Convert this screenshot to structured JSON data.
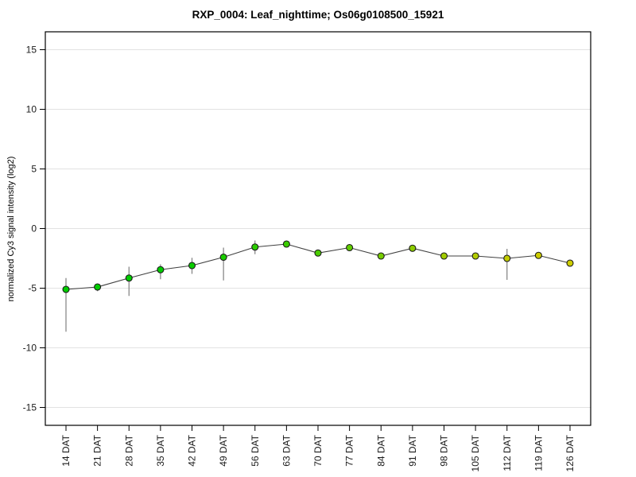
{
  "chart_data": {
    "type": "line",
    "title": "RXP_0004: Leaf_nighttime; Os06g0108500_15921",
    "ylabel": "normalized Cy3 signal intensity (log2)",
    "xlabel": "",
    "categories": [
      "14 DAT",
      "21 DAT",
      "28 DAT",
      "35 DAT",
      "42 DAT",
      "49 DAT",
      "56 DAT",
      "63 DAT",
      "70 DAT",
      "77 DAT",
      "84 DAT",
      "91 DAT",
      "98 DAT",
      "105 DAT",
      "112 DAT",
      "119 DAT",
      "126 DAT"
    ],
    "values": [
      -5.1,
      -4.9,
      -4.15,
      -3.45,
      -3.1,
      -2.4,
      -1.55,
      -1.3,
      -2.05,
      -1.6,
      -2.3,
      -1.65,
      -2.3,
      -2.3,
      -2.5,
      -2.25,
      -2.9
    ],
    "error_low": [
      -8.65,
      -5.25,
      -5.65,
      -4.25,
      -3.8,
      -4.35,
      -2.15,
      -1.45,
      -2.2,
      -1.9,
      -2.45,
      -1.95,
      -2.4,
      -2.4,
      -4.3,
      -2.4,
      -3.0
    ],
    "error_high": [
      -4.15,
      -4.65,
      -3.2,
      -3.0,
      -2.45,
      -1.6,
      -1.0,
      -1.15,
      -1.9,
      -1.3,
      -2.15,
      -1.4,
      -2.2,
      -2.2,
      -1.7,
      -2.1,
      -2.8
    ],
    "point_colors": [
      "#00CC00",
      "#00CC00",
      "#00CC00",
      "#00CC00",
      "#0ACC00",
      "#1ACC00",
      "#2ACC00",
      "#3ACC00",
      "#4ACC00",
      "#60CC00",
      "#76CC00",
      "#8CCC00",
      "#A2CC00",
      "#B2CC00",
      "#C2CC00",
      "#CCCC00",
      "#CCCC00"
    ],
    "yticks": [
      15,
      10,
      5,
      0,
      -5,
      -10,
      -15
    ],
    "ylim": [
      -16.5,
      16.5
    ],
    "grid": "horizontal",
    "legend": "none",
    "line_color": "#404040",
    "error_bar_color": "#808080",
    "point_stroke_color": "#1A1A1A",
    "grid_color": "#E2E2E2",
    "axis_color": "#000000",
    "tick_label_color": "#1A1A1A",
    "background_color": "#FFFFFF"
  }
}
